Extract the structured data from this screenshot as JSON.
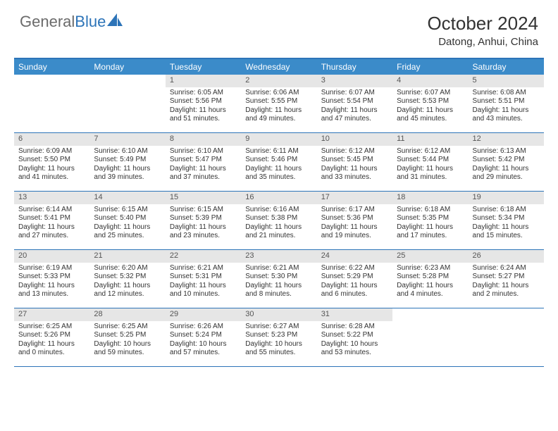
{
  "colors": {
    "header_bg": "#3b8bc9",
    "border": "#2d74b8",
    "daynum_bg": "#e6e6e6",
    "text": "#333333",
    "logo_gray": "#6b6b6b",
    "logo_blue": "#2d74b8"
  },
  "logo": {
    "part1": "General",
    "part2": "Blue"
  },
  "title": "October 2024",
  "location": "Datong, Anhui, China",
  "day_names": [
    "Sunday",
    "Monday",
    "Tuesday",
    "Wednesday",
    "Thursday",
    "Friday",
    "Saturday"
  ],
  "weeks": [
    [
      null,
      null,
      {
        "d": "1",
        "sr": "Sunrise: 6:05 AM",
        "ss": "Sunset: 5:56 PM",
        "dl": "Daylight: 11 hours and 51 minutes."
      },
      {
        "d": "2",
        "sr": "Sunrise: 6:06 AM",
        "ss": "Sunset: 5:55 PM",
        "dl": "Daylight: 11 hours and 49 minutes."
      },
      {
        "d": "3",
        "sr": "Sunrise: 6:07 AM",
        "ss": "Sunset: 5:54 PM",
        "dl": "Daylight: 11 hours and 47 minutes."
      },
      {
        "d": "4",
        "sr": "Sunrise: 6:07 AM",
        "ss": "Sunset: 5:53 PM",
        "dl": "Daylight: 11 hours and 45 minutes."
      },
      {
        "d": "5",
        "sr": "Sunrise: 6:08 AM",
        "ss": "Sunset: 5:51 PM",
        "dl": "Daylight: 11 hours and 43 minutes."
      }
    ],
    [
      {
        "d": "6",
        "sr": "Sunrise: 6:09 AM",
        "ss": "Sunset: 5:50 PM",
        "dl": "Daylight: 11 hours and 41 minutes."
      },
      {
        "d": "7",
        "sr": "Sunrise: 6:10 AM",
        "ss": "Sunset: 5:49 PM",
        "dl": "Daylight: 11 hours and 39 minutes."
      },
      {
        "d": "8",
        "sr": "Sunrise: 6:10 AM",
        "ss": "Sunset: 5:47 PM",
        "dl": "Daylight: 11 hours and 37 minutes."
      },
      {
        "d": "9",
        "sr": "Sunrise: 6:11 AM",
        "ss": "Sunset: 5:46 PM",
        "dl": "Daylight: 11 hours and 35 minutes."
      },
      {
        "d": "10",
        "sr": "Sunrise: 6:12 AM",
        "ss": "Sunset: 5:45 PM",
        "dl": "Daylight: 11 hours and 33 minutes."
      },
      {
        "d": "11",
        "sr": "Sunrise: 6:12 AM",
        "ss": "Sunset: 5:44 PM",
        "dl": "Daylight: 11 hours and 31 minutes."
      },
      {
        "d": "12",
        "sr": "Sunrise: 6:13 AM",
        "ss": "Sunset: 5:42 PM",
        "dl": "Daylight: 11 hours and 29 minutes."
      }
    ],
    [
      {
        "d": "13",
        "sr": "Sunrise: 6:14 AM",
        "ss": "Sunset: 5:41 PM",
        "dl": "Daylight: 11 hours and 27 minutes."
      },
      {
        "d": "14",
        "sr": "Sunrise: 6:15 AM",
        "ss": "Sunset: 5:40 PM",
        "dl": "Daylight: 11 hours and 25 minutes."
      },
      {
        "d": "15",
        "sr": "Sunrise: 6:15 AM",
        "ss": "Sunset: 5:39 PM",
        "dl": "Daylight: 11 hours and 23 minutes."
      },
      {
        "d": "16",
        "sr": "Sunrise: 6:16 AM",
        "ss": "Sunset: 5:38 PM",
        "dl": "Daylight: 11 hours and 21 minutes."
      },
      {
        "d": "17",
        "sr": "Sunrise: 6:17 AM",
        "ss": "Sunset: 5:36 PM",
        "dl": "Daylight: 11 hours and 19 minutes."
      },
      {
        "d": "18",
        "sr": "Sunrise: 6:18 AM",
        "ss": "Sunset: 5:35 PM",
        "dl": "Daylight: 11 hours and 17 minutes."
      },
      {
        "d": "19",
        "sr": "Sunrise: 6:18 AM",
        "ss": "Sunset: 5:34 PM",
        "dl": "Daylight: 11 hours and 15 minutes."
      }
    ],
    [
      {
        "d": "20",
        "sr": "Sunrise: 6:19 AM",
        "ss": "Sunset: 5:33 PM",
        "dl": "Daylight: 11 hours and 13 minutes."
      },
      {
        "d": "21",
        "sr": "Sunrise: 6:20 AM",
        "ss": "Sunset: 5:32 PM",
        "dl": "Daylight: 11 hours and 12 minutes."
      },
      {
        "d": "22",
        "sr": "Sunrise: 6:21 AM",
        "ss": "Sunset: 5:31 PM",
        "dl": "Daylight: 11 hours and 10 minutes."
      },
      {
        "d": "23",
        "sr": "Sunrise: 6:21 AM",
        "ss": "Sunset: 5:30 PM",
        "dl": "Daylight: 11 hours and 8 minutes."
      },
      {
        "d": "24",
        "sr": "Sunrise: 6:22 AM",
        "ss": "Sunset: 5:29 PM",
        "dl": "Daylight: 11 hours and 6 minutes."
      },
      {
        "d": "25",
        "sr": "Sunrise: 6:23 AM",
        "ss": "Sunset: 5:28 PM",
        "dl": "Daylight: 11 hours and 4 minutes."
      },
      {
        "d": "26",
        "sr": "Sunrise: 6:24 AM",
        "ss": "Sunset: 5:27 PM",
        "dl": "Daylight: 11 hours and 2 minutes."
      }
    ],
    [
      {
        "d": "27",
        "sr": "Sunrise: 6:25 AM",
        "ss": "Sunset: 5:26 PM",
        "dl": "Daylight: 11 hours and 0 minutes."
      },
      {
        "d": "28",
        "sr": "Sunrise: 6:25 AM",
        "ss": "Sunset: 5:25 PM",
        "dl": "Daylight: 10 hours and 59 minutes."
      },
      {
        "d": "29",
        "sr": "Sunrise: 6:26 AM",
        "ss": "Sunset: 5:24 PM",
        "dl": "Daylight: 10 hours and 57 minutes."
      },
      {
        "d": "30",
        "sr": "Sunrise: 6:27 AM",
        "ss": "Sunset: 5:23 PM",
        "dl": "Daylight: 10 hours and 55 minutes."
      },
      {
        "d": "31",
        "sr": "Sunrise: 6:28 AM",
        "ss": "Sunset: 5:22 PM",
        "dl": "Daylight: 10 hours and 53 minutes."
      },
      null,
      null
    ]
  ]
}
